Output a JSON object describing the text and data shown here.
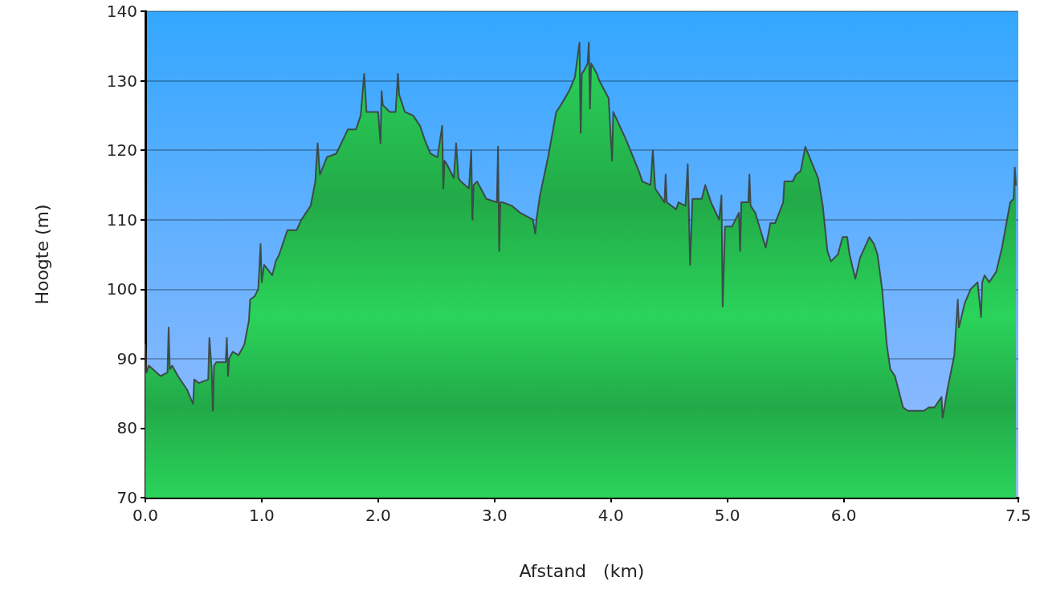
{
  "chart_data": {
    "type": "area",
    "xlabel": "Afstand   (km)",
    "ylabel": "Hoogte (m)",
    "color": "#22aa48",
    "x": [
      0,
      0.01,
      0.03,
      0.13,
      0.19,
      0.2,
      0.21,
      0.23,
      0.28,
      0.36,
      0.41,
      0.42,
      0.46,
      0.54,
      0.55,
      0.57,
      0.58,
      0.59,
      0.61,
      0.69,
      0.7,
      0.71,
      0.72,
      0.75,
      0.8,
      0.85,
      0.89,
      0.9,
      0.94,
      0.97,
      0.99,
      1.0,
      1.02,
      1.09,
      1.12,
      1.15,
      1.22,
      1.3,
      1.34,
      1.42,
      1.46,
      1.48,
      1.5,
      1.56,
      1.64,
      1.74,
      1.81,
      1.85,
      1.88,
      1.9,
      2.0,
      2.02,
      2.03,
      2.04,
      2.1,
      2.15,
      2.17,
      2.18,
      2.23,
      2.3,
      2.36,
      2.4,
      2.45,
      2.51,
      2.55,
      2.56,
      2.57,
      2.59,
      2.65,
      2.67,
      2.69,
      2.71,
      2.78,
      2.8,
      2.81,
      2.82,
      2.85,
      2.93,
      3.02,
      3.03,
      3.04,
      3.05,
      3.07,
      3.15,
      3.22,
      3.33,
      3.35,
      3.36,
      3.39,
      3.46,
      3.53,
      3.57,
      3.64,
      3.69,
      3.73,
      3.74,
      3.75,
      3.77,
      3.8,
      3.81,
      3.82,
      3.83,
      3.88,
      3.9,
      3.98,
      4.01,
      4.02,
      4.13,
      4.24,
      4.27,
      4.34,
      4.36,
      4.38,
      4.46,
      4.47,
      4.48,
      4.56,
      4.58,
      4.64,
      4.66,
      4.68,
      4.7,
      4.72,
      4.78,
      4.81,
      4.86,
      4.93,
      4.95,
      4.96,
      4.98,
      5.04,
      5.1,
      5.11,
      5.12,
      5.18,
      5.19,
      5.2,
      5.24,
      5.33,
      5.37,
      5.41,
      5.48,
      5.49,
      5.56,
      5.59,
      5.63,
      5.67,
      5.73,
      5.78,
      5.82,
      5.86,
      5.89,
      5.95,
      5.99,
      6.03,
      6.05,
      6.1,
      6.14,
      6.22,
      6.26,
      6.29,
      6.33,
      6.37,
      6.4,
      6.44,
      6.51,
      6.55,
      6.59,
      6.69,
      6.73,
      6.78,
      6.84,
      6.85,
      6.89,
      6.95,
      6.98,
      6.99,
      7.04,
      7.09,
      7.15,
      7.18,
      7.19,
      7.21,
      7.25,
      7.31,
      7.36,
      7.43,
      7.46,
      7.47,
      7.48
    ],
    "values": [
      92,
      88,
      89,
      87.5,
      88,
      94.5,
      88.5,
      89,
      87.5,
      85.5,
      83.5,
      87,
      86.5,
      87,
      93,
      88.5,
      82.5,
      89,
      89.5,
      89.5,
      93,
      87.5,
      90,
      91,
      90.5,
      92,
      95.5,
      98.5,
      99,
      100,
      106.5,
      101,
      103.5,
      102,
      104,
      105,
      108.5,
      108.5,
      110,
      112,
      115.5,
      121,
      116.5,
      119,
      119.5,
      123,
      123,
      125,
      131,
      125.5,
      125.5,
      121,
      128.5,
      126.5,
      125.5,
      125.5,
      131,
      128,
      125.5,
      125,
      123.5,
      121.5,
      119.5,
      119,
      123.5,
      114.5,
      118.5,
      118,
      116,
      121,
      116,
      115.5,
      114.5,
      120,
      110,
      115,
      115.5,
      113,
      112.5,
      120.5,
      105.5,
      112.5,
      112.5,
      112,
      111,
      110,
      108,
      110,
      113.5,
      119,
      125.5,
      126.5,
      128.5,
      130.5,
      135.5,
      122.5,
      131,
      131.5,
      132.5,
      135.5,
      126,
      132.5,
      131,
      130,
      127.5,
      118.5,
      125.5,
      121.5,
      117,
      115.5,
      115,
      120,
      114.5,
      112.5,
      116.5,
      112.5,
      111.5,
      112.5,
      112,
      118,
      103.5,
      113,
      113,
      113,
      115,
      112.5,
      110,
      113.5,
      97.5,
      109,
      109,
      111,
      105.5,
      112.5,
      112.5,
      116.5,
      112,
      111,
      106,
      109.5,
      109.5,
      112.5,
      115.5,
      115.5,
      116.5,
      117,
      120.5,
      118,
      116,
      112,
      105.5,
      104,
      105,
      107.5,
      107.5,
      105,
      101.5,
      104.5,
      107.5,
      106.5,
      105,
      100,
      92,
      88.5,
      87.5,
      83,
      82.5,
      82.5,
      82.5,
      83,
      83,
      84.5,
      81.5,
      85.5,
      90.5,
      98.5,
      94.5,
      98,
      100,
      101,
      96,
      101,
      102,
      101,
      102.5,
      106,
      112.5,
      113,
      117.5,
      115
    ],
    "xlim": [
      0,
      7.5
    ],
    "xticks": [
      {
        "value": 0,
        "label": "0.0"
      },
      {
        "value": 1,
        "label": "1.0"
      },
      {
        "value": 2,
        "label": "2.0"
      },
      {
        "value": 3,
        "label": "3.0"
      },
      {
        "value": 4,
        "label": "4.0"
      },
      {
        "value": 5,
        "label": "5.0"
      },
      {
        "value": 6,
        "label": "6.0"
      },
      {
        "value": 7.5,
        "label": "7.5"
      }
    ],
    "ylim": [
      70,
      140
    ],
    "yticks": [
      70,
      80,
      90,
      100,
      110,
      120,
      130,
      140
    ],
    "grid": "y"
  }
}
